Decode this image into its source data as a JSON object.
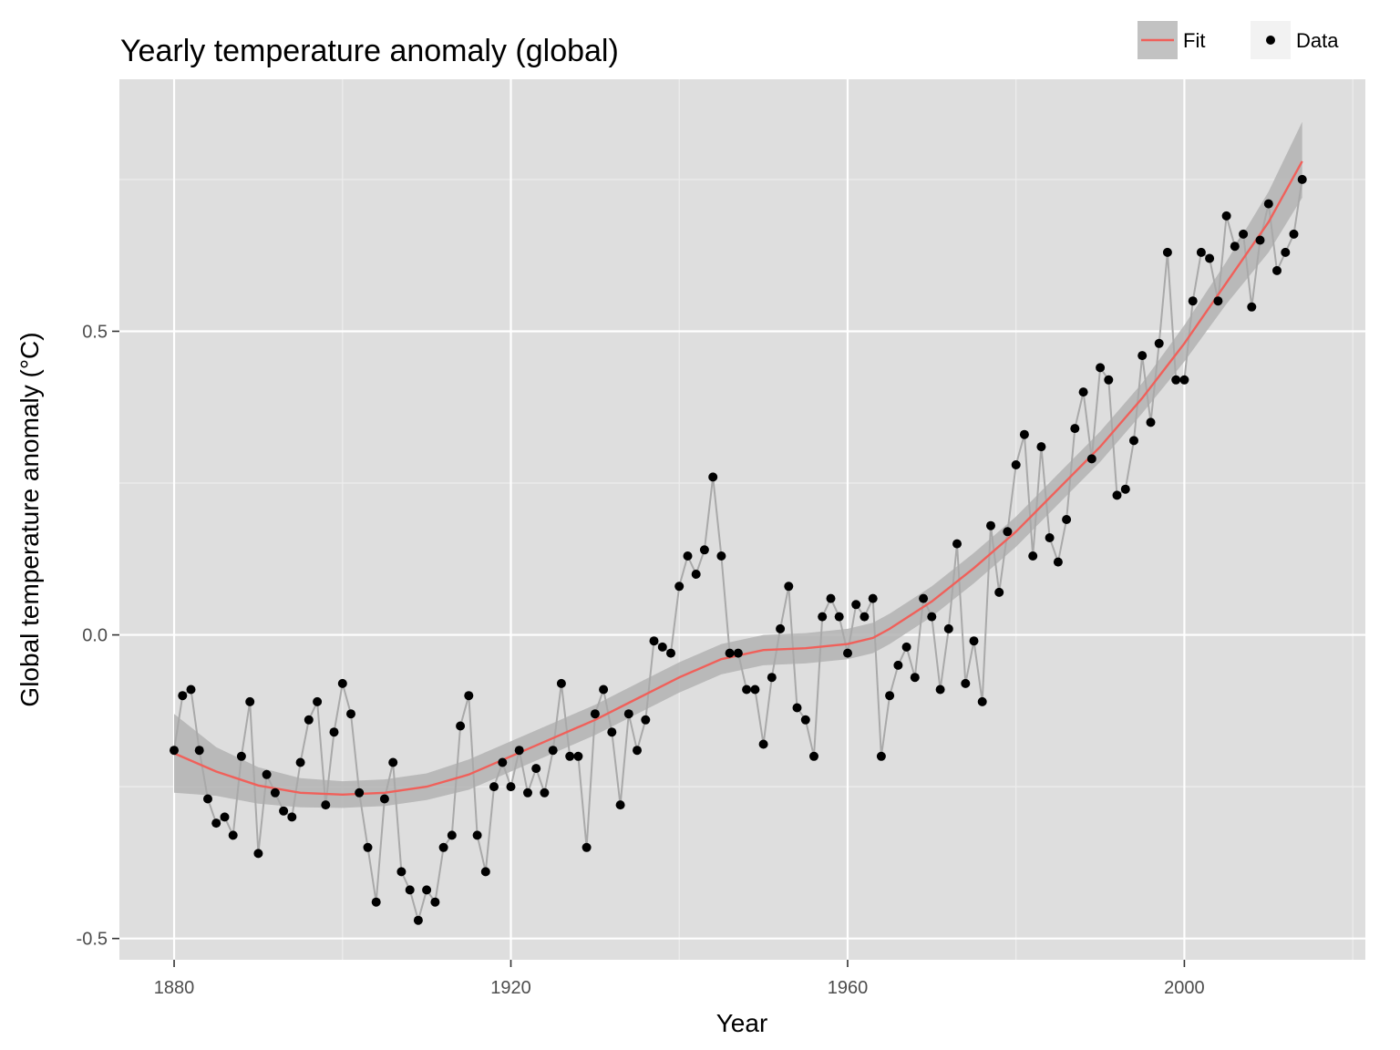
{
  "chart_data": {
    "type": "line",
    "title": "Yearly temperature anomaly (global)",
    "xlabel": "Year",
    "ylabel": "Global temperature anomaly (°C)",
    "xlim": [
      1873.5,
      2021.5
    ],
    "ylim": [
      -0.535,
      0.915
    ],
    "x_ticks": [
      1880,
      1920,
      1960,
      2000
    ],
    "x_tick_labels": [
      "1880",
      "1920",
      "1960",
      "2000"
    ],
    "x_minor_ticks": [
      1900,
      1940,
      1980,
      2020
    ],
    "y_ticks": [
      -0.5,
      0.0,
      0.5
    ],
    "y_tick_labels": [
      "-0.5",
      "0.0",
      "0.5"
    ],
    "y_minor_ticks": [
      -0.25,
      0.25,
      0.75
    ],
    "grid": true,
    "legend": {
      "position": "top-right",
      "entries": [
        {
          "label": "Fit",
          "kind": "line"
        },
        {
          "label": "Data",
          "kind": "point"
        }
      ]
    },
    "colors": {
      "panel_background": "#dedede",
      "grid_major": "#ffffff",
      "grid_minor": "#ededed",
      "data_line": "#a9a9a9",
      "data_point": "#000000",
      "fit_line": "#f0605a",
      "ribbon": "#b3b3b3"
    },
    "series": [
      {
        "name": "Data",
        "x": [
          1880,
          1881,
          1882,
          1883,
          1884,
          1885,
          1886,
          1887,
          1888,
          1889,
          1890,
          1891,
          1892,
          1893,
          1894,
          1895,
          1896,
          1897,
          1898,
          1899,
          1900,
          1901,
          1902,
          1903,
          1904,
          1905,
          1906,
          1907,
          1908,
          1909,
          1910,
          1911,
          1912,
          1913,
          1914,
          1915,
          1916,
          1917,
          1918,
          1919,
          1920,
          1921,
          1922,
          1923,
          1924,
          1925,
          1926,
          1927,
          1928,
          1929,
          1930,
          1931,
          1932,
          1933,
          1934,
          1935,
          1936,
          1937,
          1938,
          1939,
          1940,
          1941,
          1942,
          1943,
          1944,
          1945,
          1946,
          1947,
          1948,
          1949,
          1950,
          1951,
          1952,
          1953,
          1954,
          1955,
          1956,
          1957,
          1958,
          1959,
          1960,
          1961,
          1962,
          1963,
          1964,
          1965,
          1966,
          1967,
          1968,
          1969,
          1970,
          1971,
          1972,
          1973,
          1974,
          1975,
          1976,
          1977,
          1978,
          1979,
          1980,
          1981,
          1982,
          1983,
          1984,
          1985,
          1986,
          1987,
          1988,
          1989,
          1990,
          1991,
          1992,
          1993,
          1994,
          1995,
          1996,
          1997,
          1998,
          1999,
          2000,
          2001,
          2002,
          2003,
          2004,
          2005,
          2006,
          2007,
          2008,
          2009,
          2010,
          2011,
          2012,
          2013,
          2014
        ],
        "y": [
          -0.19,
          -0.1,
          -0.09,
          -0.19,
          -0.27,
          -0.31,
          -0.3,
          -0.33,
          -0.2,
          -0.11,
          -0.36,
          -0.23,
          -0.26,
          -0.29,
          -0.3,
          -0.21,
          -0.14,
          -0.11,
          -0.28,
          -0.16,
          -0.08,
          -0.13,
          -0.26,
          -0.35,
          -0.44,
          -0.27,
          -0.21,
          -0.39,
          -0.42,
          -0.47,
          -0.42,
          -0.44,
          -0.35,
          -0.33,
          -0.15,
          -0.1,
          -0.33,
          -0.39,
          -0.25,
          -0.21,
          -0.25,
          -0.19,
          -0.26,
          -0.22,
          -0.26,
          -0.19,
          -0.08,
          -0.2,
          -0.2,
          -0.35,
          -0.13,
          -0.09,
          -0.16,
          -0.28,
          -0.13,
          -0.19,
          -0.14,
          -0.01,
          -0.02,
          -0.03,
          0.08,
          0.13,
          0.1,
          0.14,
          0.26,
          0.13,
          -0.03,
          -0.03,
          -0.09,
          -0.09,
          -0.18,
          -0.07,
          0.01,
          0.08,
          -0.12,
          -0.14,
          -0.2,
          0.03,
          0.06,
          0.03,
          -0.03,
          0.05,
          0.03,
          0.06,
          -0.2,
          -0.1,
          -0.05,
          -0.02,
          -0.07,
          0.06,
          0.03,
          -0.09,
          0.01,
          0.15,
          -0.08,
          -0.01,
          -0.11,
          0.18,
          0.07,
          0.17,
          0.28,
          0.33,
          0.13,
          0.31,
          0.16,
          0.12,
          0.19,
          0.34,
          0.4,
          0.29,
          0.44,
          0.42,
          0.23,
          0.24,
          0.32,
          0.46,
          0.35,
          0.48,
          0.63,
          0.42,
          0.42,
          0.55,
          0.63,
          0.62,
          0.55,
          0.69,
          0.64,
          0.66,
          0.54,
          0.65,
          0.71,
          0.6,
          0.63,
          0.66,
          0.75
        ]
      },
      {
        "name": "Fit",
        "x": [
          1880,
          1885,
          1890,
          1895,
          1900,
          1905,
          1910,
          1915,
          1920,
          1925,
          1930,
          1935,
          1940,
          1945,
          1950,
          1955,
          1960,
          1963,
          1965,
          1970,
          1975,
          1980,
          1985,
          1990,
          1995,
          2000,
          2005,
          2010,
          2014
        ],
        "y": [
          -0.195,
          -0.225,
          -0.248,
          -0.26,
          -0.263,
          -0.26,
          -0.25,
          -0.23,
          -0.2,
          -0.17,
          -0.14,
          -0.105,
          -0.07,
          -0.04,
          -0.025,
          -0.022,
          -0.015,
          -0.005,
          0.01,
          0.055,
          0.11,
          0.17,
          0.24,
          0.31,
          0.39,
          0.48,
          0.58,
          0.68,
          0.78
        ]
      }
    ],
    "fit_band": {
      "x": [
        1880,
        1885,
        1890,
        1895,
        1900,
        1905,
        1910,
        1915,
        1920,
        1925,
        1930,
        1935,
        1940,
        1945,
        1950,
        1955,
        1960,
        1963,
        1965,
        1970,
        1975,
        1980,
        1985,
        1990,
        1995,
        2000,
        2005,
        2010,
        2014
      ],
      "lower": [
        -0.26,
        -0.265,
        -0.278,
        -0.284,
        -0.285,
        -0.282,
        -0.272,
        -0.255,
        -0.225,
        -0.195,
        -0.165,
        -0.13,
        -0.095,
        -0.065,
        -0.05,
        -0.047,
        -0.04,
        -0.03,
        -0.015,
        0.03,
        0.085,
        0.145,
        0.215,
        0.285,
        0.365,
        0.45,
        0.545,
        0.63,
        0.72
      ],
      "upper": [
        -0.13,
        -0.185,
        -0.218,
        -0.236,
        -0.241,
        -0.238,
        -0.228,
        -0.205,
        -0.175,
        -0.145,
        -0.115,
        -0.08,
        -0.045,
        -0.015,
        0.0,
        0.003,
        0.01,
        0.02,
        0.035,
        0.08,
        0.135,
        0.195,
        0.265,
        0.335,
        0.415,
        0.51,
        0.615,
        0.73,
        0.845
      ]
    }
  }
}
